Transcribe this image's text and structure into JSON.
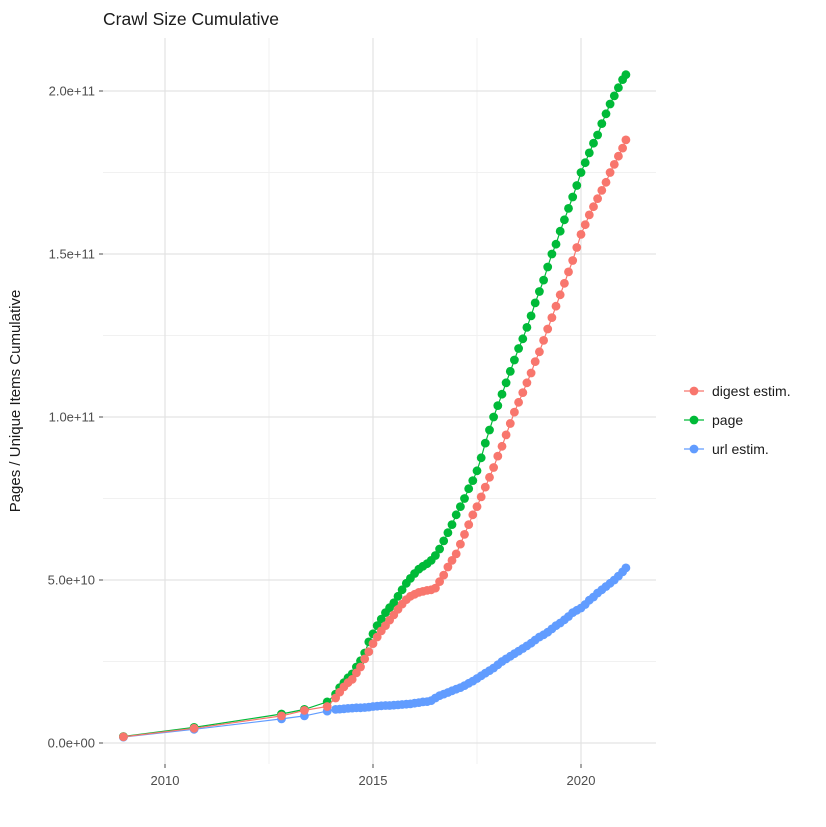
{
  "chart": {
    "title": "Crawl Size Cumulative",
    "background_color": "#FFFFFF",
    "gridline_major_color": "#E3E3E3",
    "gridline_minor_color": "#F1F1F1",
    "tick_mark_color": "#4D4D4D",
    "tick_label_color": "#4D4D4D",
    "text_color": "#1A1A1A"
  },
  "chart_data": {
    "type": "scatter",
    "title": "Crawl Size Cumulative",
    "xlabel": "",
    "ylabel": "Pages / Unique Items Cumulative",
    "grid": true,
    "legend_position": "right",
    "value_unit": "billions (1e9) of pages / unique items",
    "x_axis": {
      "range": [
        2008.5,
        2021.8
      ],
      "major_ticks": [
        {
          "value": 2010,
          "label": "2010"
        },
        {
          "value": 2015,
          "label": "2015"
        },
        {
          "value": 2020,
          "label": "2020"
        }
      ],
      "minor_ticks": [
        2012.5,
        2017.5
      ]
    },
    "y_axis": {
      "title": "Pages / Unique Items Cumulative",
      "range": [
        0,
        212
      ],
      "major_ticks": [
        {
          "value": 0,
          "label": "0.0e+00"
        },
        {
          "value": 50,
          "label": "5.0e+10"
        },
        {
          "value": 100,
          "label": "1.0e+11"
        },
        {
          "value": 150,
          "label": "1.5e+11"
        },
        {
          "value": 200,
          "label": "2.0e+11"
        }
      ],
      "minor_ticks": [
        25,
        75,
        125,
        175
      ]
    },
    "x": [
      2009.0,
      2010.7,
      2012.8,
      2013.35,
      2013.9,
      2014.1,
      2014.2,
      2014.3,
      2014.4,
      2014.5,
      2014.6,
      2014.7,
      2014.8,
      2014.9,
      2015.0,
      2015.1,
      2015.2,
      2015.3,
      2015.4,
      2015.5,
      2015.6,
      2015.7,
      2015.8,
      2015.9,
      2016.0,
      2016.1,
      2016.2,
      2016.3,
      2016.4,
      2016.5,
      2016.6,
      2016.7,
      2016.8,
      2016.9,
      2017.0,
      2017.1,
      2017.2,
      2017.3,
      2017.4,
      2017.5,
      2017.6,
      2017.7,
      2017.8,
      2017.9,
      2018.0,
      2018.1,
      2018.2,
      2018.3,
      2018.4,
      2018.5,
      2018.6,
      2018.7,
      2018.8,
      2018.9,
      2019.0,
      2019.1,
      2019.2,
      2019.3,
      2019.4,
      2019.5,
      2019.6,
      2019.7,
      2019.8,
      2019.9,
      2020.0,
      2020.1,
      2020.2,
      2020.3,
      2020.4,
      2020.5,
      2020.6,
      2020.7,
      2020.8,
      2020.9,
      2021.0,
      2021.08
    ],
    "series": [
      {
        "name": "digest estim.",
        "color": "#F8766D",
        "values": [
          1.9,
          4.5,
          8.3,
          10,
          11.2,
          13.8,
          15.6,
          17.2,
          18.5,
          19.5,
          21.5,
          23.3,
          25.8,
          28,
          30.5,
          32.5,
          34.4,
          36,
          37.7,
          39.3,
          41,
          42.6,
          44,
          45,
          45.6,
          46.2,
          46.5,
          46.8,
          47,
          47.5,
          49.5,
          51.5,
          54,
          56,
          58,
          61,
          64,
          67,
          70,
          72.5,
          75.5,
          78.5,
          81.5,
          84.5,
          88,
          91,
          94.5,
          98,
          101.5,
          104.5,
          107.5,
          110.5,
          113.5,
          117,
          120,
          123.5,
          127,
          130.5,
          134,
          137.5,
          141,
          144.5,
          148,
          152,
          156,
          159,
          162,
          164.5,
          167,
          169.5,
          172,
          175,
          177.5,
          180,
          182.5,
          185
        ]
      },
      {
        "name": "page",
        "color": "#00BA38",
        "values": [
          2,
          4.8,
          8.9,
          10.3,
          12.6,
          15,
          17,
          18.5,
          20,
          21.2,
          23.3,
          25.2,
          27.6,
          31,
          33.5,
          36,
          38,
          40,
          41.5,
          43,
          45,
          47,
          49,
          50.5,
          52,
          53.3,
          54.2,
          55,
          56,
          57.5,
          59.5,
          62,
          64.5,
          67,
          70,
          72.5,
          75,
          78,
          80.5,
          83.5,
          87.5,
          92,
          96,
          100,
          103.5,
          107,
          110.5,
          114,
          117.5,
          121,
          124,
          127.5,
          131,
          135,
          138.5,
          142,
          146,
          150,
          153,
          157,
          160.5,
          164,
          167.5,
          171,
          175,
          178,
          181,
          184,
          186.5,
          190,
          193,
          196,
          198.5,
          201,
          203.5,
          205
        ]
      },
      {
        "name": "url estim.",
        "color": "#619CFF",
        "values": [
          1.8,
          4.2,
          7.4,
          8.3,
          9.8,
          10.3,
          10.4,
          10.5,
          10.6,
          10.7,
          10.8,
          10.8,
          10.9,
          11,
          11.2,
          11.3,
          11.4,
          11.5,
          11.5,
          11.6,
          11.7,
          11.8,
          11.9,
          12,
          12.2,
          12.4,
          12.6,
          12.7,
          13,
          13.8,
          14.5,
          15,
          15.5,
          16,
          16.5,
          17,
          17.6,
          18.3,
          19,
          19.8,
          20.6,
          21.4,
          22.2,
          23,
          24,
          25,
          25.8,
          26.6,
          27.4,
          28.2,
          29,
          29.8,
          30.6,
          31.6,
          32.5,
          33.2,
          34,
          35,
          36,
          36.8,
          37.8,
          38.8,
          40,
          40.7,
          41.4,
          42.5,
          43.8,
          44.8,
          46,
          47,
          48,
          49,
          50,
          51.2,
          52.5,
          53.7
        ]
      }
    ],
    "draw_order": [
      "url estim.",
      "page",
      "digest estim."
    ]
  },
  "legend": {
    "items": [
      {
        "label": "digest estim."
      },
      {
        "label": "page"
      },
      {
        "label": "url estim."
      }
    ]
  }
}
